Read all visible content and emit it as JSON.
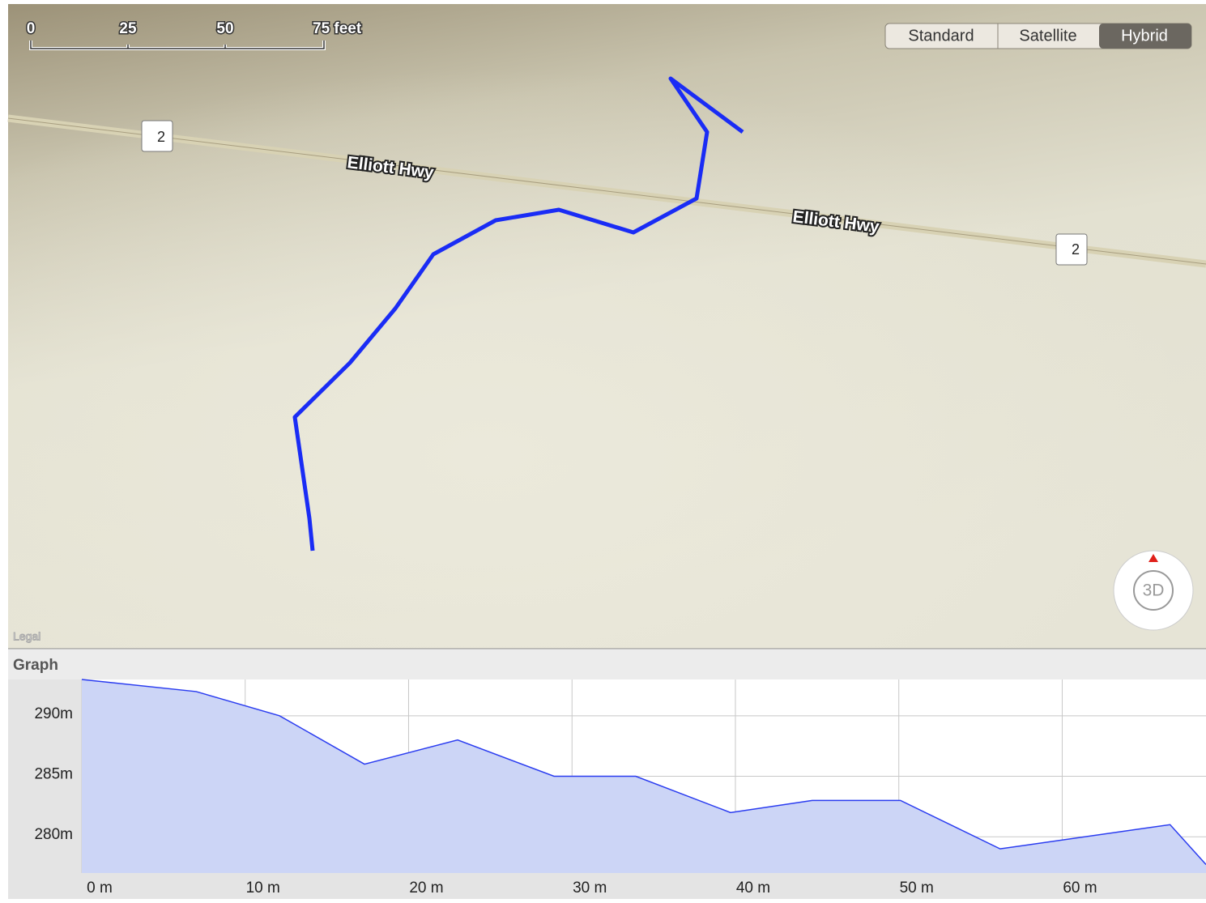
{
  "map": {
    "scale_labels": [
      "0",
      "25",
      "50",
      "75 feet"
    ],
    "map_types": [
      "Standard",
      "Satellite",
      "Hybrid"
    ],
    "road_labels": [
      "Elliott Hwy",
      "Elliott Hwy"
    ],
    "route_shields": [
      "2",
      "2"
    ],
    "legal": "Legal",
    "compass_label": "3D"
  },
  "graph_panel": {
    "title": "Graph"
  },
  "chart_data": {
    "type": "area",
    "color": "#2a3cf0",
    "fill": "#ccd5f6",
    "grid": true,
    "x": [
      0,
      7.0,
      12.1,
      17.3,
      23.0,
      28.9,
      33.9,
      39.7,
      44.7,
      50.1,
      56.2,
      66.6,
      68.8
    ],
    "values": [
      293,
      292,
      290,
      286,
      288,
      285,
      285,
      282,
      283,
      283,
      279,
      281,
      277.7
    ],
    "xlim": [
      0,
      68.8
    ],
    "ylim": [
      277,
      293
    ],
    "xticks": [
      {
        "value": 0,
        "label": "0 m"
      },
      {
        "value": 10,
        "label": "10 m"
      },
      {
        "value": 20,
        "label": "20 m"
      },
      {
        "value": 30,
        "label": "30 m"
      },
      {
        "value": 40,
        "label": "40 m"
      },
      {
        "value": 50,
        "label": "50 m"
      },
      {
        "value": 60,
        "label": "60 m"
      }
    ],
    "yticks": [
      {
        "value": 280,
        "label": "280m"
      },
      {
        "value": 285,
        "label": "285m"
      },
      {
        "value": 290,
        "label": "290m"
      }
    ]
  }
}
